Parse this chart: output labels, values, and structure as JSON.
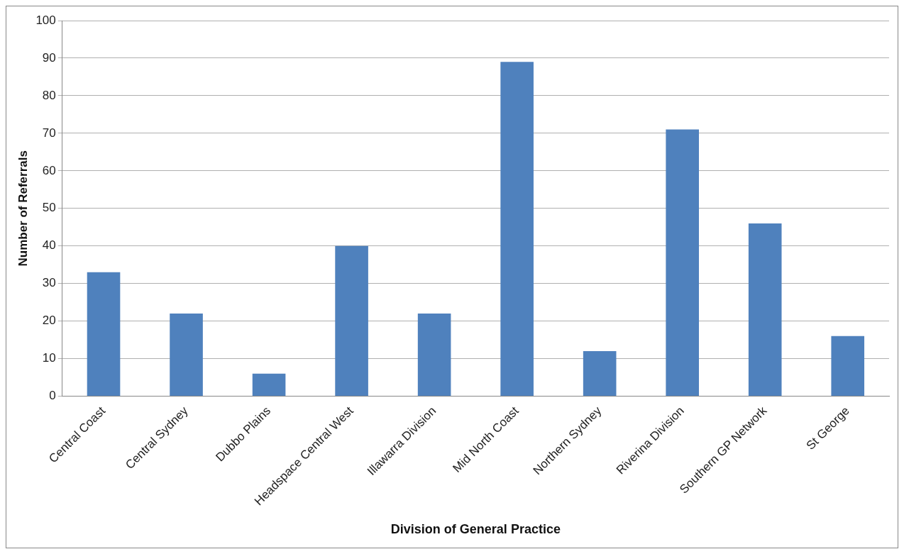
{
  "chart_data": {
    "type": "bar",
    "xlabel": "Division of General Practice",
    "ylabel": "Number of Referrals",
    "categories": [
      "Central Coast",
      "Central Sydney",
      "Dubbo Plains",
      "Headspace Central West",
      "Illawarra Division",
      "Mid North Coast",
      "Northern Sydney",
      "Riverina Division",
      "Southern GP Network",
      "St George"
    ],
    "values": [
      33,
      22,
      6,
      40,
      22,
      89,
      12,
      71,
      46,
      16
    ],
    "color": "#4f81bd",
    "ylim": [
      0,
      100
    ],
    "yticks": [
      0,
      10,
      20,
      30,
      40,
      50,
      60,
      70,
      80,
      90,
      100
    ],
    "grid": "y",
    "legend": false
  }
}
